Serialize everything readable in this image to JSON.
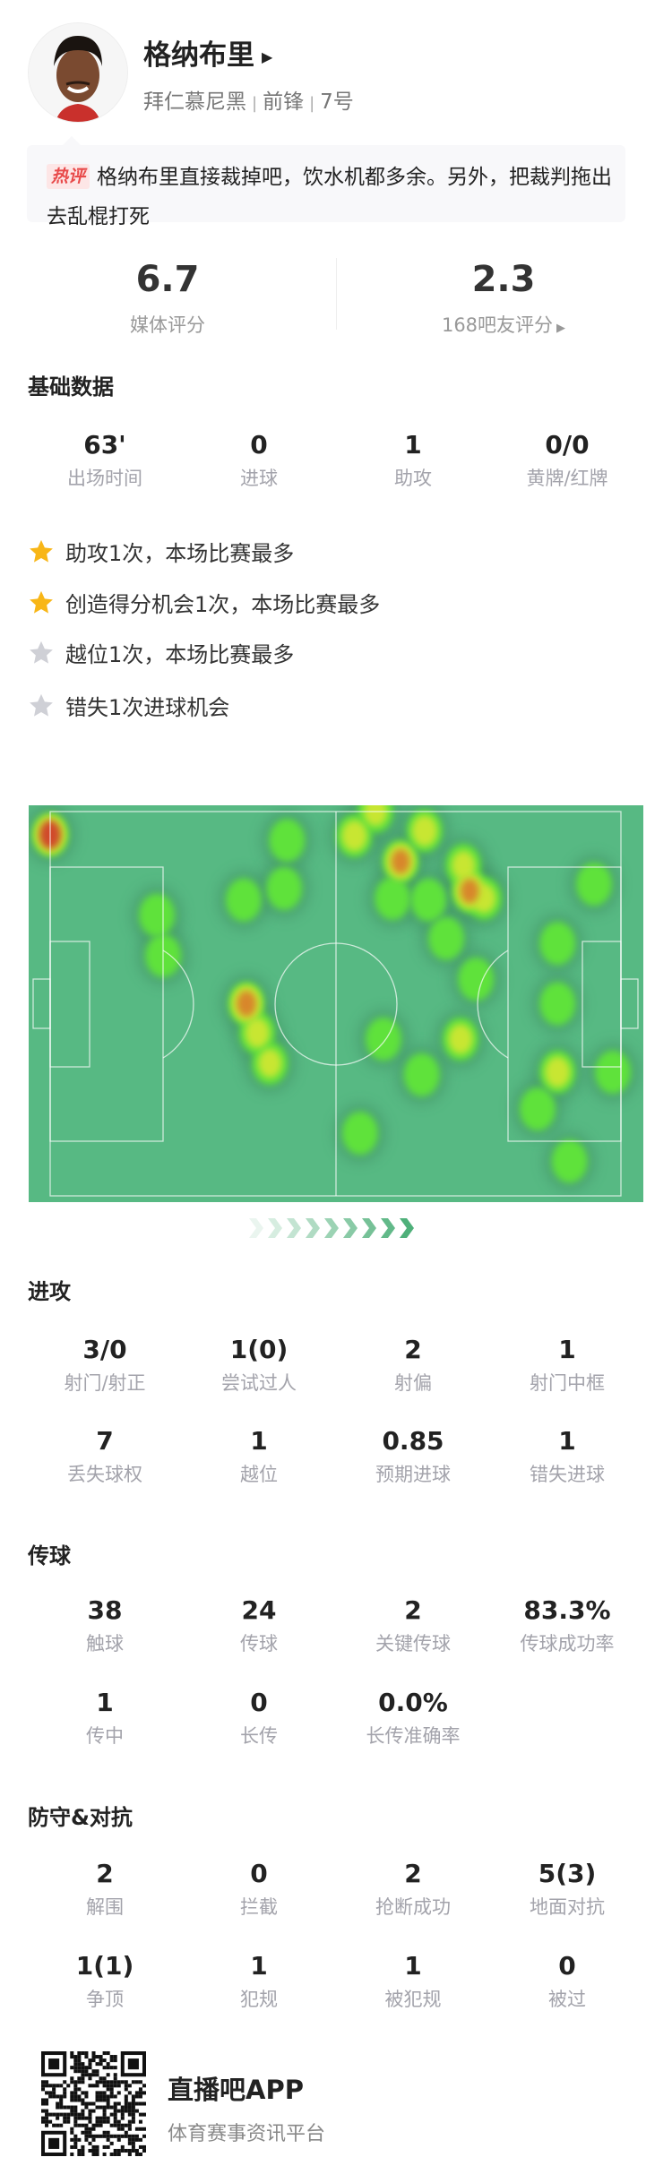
{
  "player": {
    "name": "格纳布里",
    "team": "拜仁慕尼黑",
    "position": "前锋",
    "number": "7号"
  },
  "comment": {
    "badge": "热评",
    "text": "格纳布里直接裁掉吧，饮水机都多余。另外，把裁判拖出去乱棍打死"
  },
  "ratings": {
    "media_score": "6.7",
    "media_label": "媒体评分",
    "fan_score": "2.3",
    "fan_label": "168吧友评分"
  },
  "basic": {
    "title": "基础数据",
    "stats": [
      {
        "value": "63'",
        "label": "出场时间"
      },
      {
        "value": "0",
        "label": "进球"
      },
      {
        "value": "1",
        "label": "助攻"
      },
      {
        "value": "0/0",
        "label": "黄牌/红牌"
      }
    ]
  },
  "highlights": [
    {
      "text": "助攻1次，本场比赛最多",
      "star": "gold"
    },
    {
      "text": "创造得分机会1次，本场比赛最多",
      "star": "gold"
    },
    {
      "text": "越位1次，本场比赛最多",
      "star": "gray"
    },
    {
      "text": "错失1次进球机会",
      "star": "gray"
    }
  ],
  "colors": {
    "star_gold": "#f8b617",
    "star_gray": "#cfd0d6",
    "pitch": "#57b983",
    "chevron": "#4fb07a"
  },
  "heatmap": {
    "attack_direction": "right",
    "points": [
      [
        0,
        6,
        1.0
      ],
      [
        41.5,
        7.5,
        0.4
      ],
      [
        41,
        20,
        0.4
      ],
      [
        33.9,
        23,
        0.4
      ],
      [
        18.7,
        27,
        0.4
      ],
      [
        19.8,
        37.5,
        0.45
      ],
      [
        34.4,
        50,
        0.9
      ],
      [
        36.3,
        57.6,
        0.55
      ],
      [
        38.5,
        65.5,
        0.5
      ],
      [
        57,
        0,
        0.5
      ],
      [
        53.3,
        6.3,
        0.6
      ],
      [
        65.6,
        5,
        0.6
      ],
      [
        61.4,
        13,
        0.85
      ],
      [
        60,
        22.6,
        0.45
      ],
      [
        66.3,
        23,
        0.45
      ],
      [
        72.4,
        14,
        0.5
      ],
      [
        73.5,
        20.7,
        0.85
      ],
      [
        76,
        22.6,
        0.5
      ],
      [
        95.3,
        18.9,
        0.45
      ],
      [
        69.4,
        33,
        0.4
      ],
      [
        88.9,
        34.3,
        0.45
      ],
      [
        74.6,
        43.6,
        0.45
      ],
      [
        88.9,
        50,
        0.45
      ],
      [
        58.4,
        59.2,
        0.4
      ],
      [
        71.9,
        59.2,
        0.55
      ],
      [
        65.1,
        68.5,
        0.4
      ],
      [
        88.9,
        67.8,
        0.6
      ],
      [
        98.6,
        67.8,
        0.4
      ],
      [
        85.4,
        77.4,
        0.4
      ],
      [
        54.3,
        83.7,
        0.4
      ],
      [
        91,
        91,
        0.4
      ]
    ]
  },
  "attack": {
    "title": "进攻",
    "stats": [
      {
        "value": "3/0",
        "label": "射门/射正"
      },
      {
        "value": "1(0)",
        "label": "尝试过人"
      },
      {
        "value": "2",
        "label": "射偏"
      },
      {
        "value": "1",
        "label": "射门中框"
      },
      {
        "value": "7",
        "label": "丢失球权"
      },
      {
        "value": "1",
        "label": "越位"
      },
      {
        "value": "0.85",
        "label": "预期进球"
      },
      {
        "value": "1",
        "label": "错失进球"
      }
    ]
  },
  "passing": {
    "title": "传球",
    "stats": [
      {
        "value": "38",
        "label": "触球"
      },
      {
        "value": "24",
        "label": "传球"
      },
      {
        "value": "2",
        "label": "关键传球"
      },
      {
        "value": "83.3%",
        "label": "传球成功率"
      },
      {
        "value": "1",
        "label": "传中"
      },
      {
        "value": "0",
        "label": "长传"
      },
      {
        "value": "0.0%",
        "label": "长传准确率"
      }
    ]
  },
  "defense": {
    "title": "防守&对抗",
    "stats": [
      {
        "value": "2",
        "label": "解围"
      },
      {
        "value": "0",
        "label": "拦截"
      },
      {
        "value": "2",
        "label": "抢断成功"
      },
      {
        "value": "5(3)",
        "label": "地面对抗"
      },
      {
        "value": "1(1)",
        "label": "争顶"
      },
      {
        "value": "1",
        "label": "犯规"
      },
      {
        "value": "1",
        "label": "被犯规"
      },
      {
        "value": "0",
        "label": "被过"
      }
    ]
  },
  "footer": {
    "app_name": "直播吧APP",
    "tagline": "体育赛事资讯平台"
  }
}
